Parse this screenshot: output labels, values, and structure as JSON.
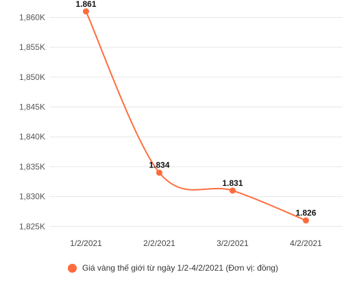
{
  "chart_data": {
    "type": "line",
    "categories": [
      "1/2/2021",
      "2/2/2021",
      "3/2/2021",
      "4/2/2021"
    ],
    "series": [
      {
        "name": "Giá vàng thế giới từ ngày 1/2-4/2/2021 (Đơn vị: đồng)",
        "values": [
          1861,
          1834,
          1831,
          1826
        ],
        "data_labels": [
          "1.861",
          "1.834",
          "1.831",
          "1.826"
        ],
        "color": "#ff6b3d"
      }
    ],
    "ylim": [
      1824,
      1862
    ],
    "yticks": [
      1825,
      1830,
      1835,
      1840,
      1845,
      1850,
      1855,
      1860
    ],
    "ytick_labels": [
      "1,825K",
      "1,830K",
      "1,835K",
      "1,840K",
      "1,845K",
      "1,850K",
      "1,855K",
      "1,860K"
    ],
    "grid": true,
    "legend_position": "bottom"
  }
}
